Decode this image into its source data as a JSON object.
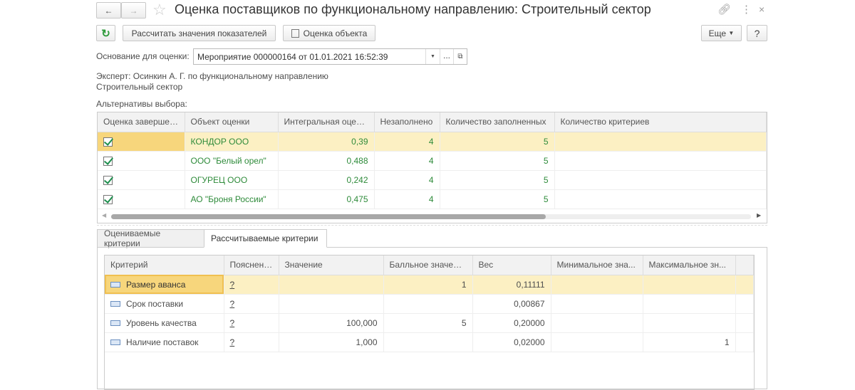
{
  "window": {
    "title": "Оценка поставщиков по функциональному направлению: Строительный сектор"
  },
  "toolbar": {
    "calculate_label": "Рассчитать значения показателей",
    "evaluate_label": "Оценка объекта",
    "more_label": "Еще",
    "help_label": "?"
  },
  "basis": {
    "label": "Основание для оценки:",
    "value": "Мероприятие 000000164 от 01.01.2021 16:52:39"
  },
  "expert": {
    "line1": "Эксперт: Осинкин А. Г. по функциональному направлению",
    "line2": "Строительный сектор"
  },
  "alternatives": {
    "label": "Альтернативы выбора:",
    "columns": [
      "Оценка завершена",
      "Объект оценки",
      "Интегральная оценка",
      "Незаполнено",
      "Количество заполненных",
      "Количество критериев"
    ],
    "rows": [
      {
        "done": true,
        "object": "КОНДОР ООО",
        "score": "0,39",
        "empty": "4",
        "filled": "5",
        "criteria": ""
      },
      {
        "done": true,
        "object": "ООО \"Белый орел\"",
        "score": "0,488",
        "empty": "4",
        "filled": "5",
        "criteria": ""
      },
      {
        "done": true,
        "object": "ОГУРЕЦ ООО",
        "score": "0,242",
        "empty": "4",
        "filled": "5",
        "criteria": ""
      },
      {
        "done": true,
        "object": "АО \"Броня России\"",
        "score": "0,475",
        "empty": "4",
        "filled": "5",
        "criteria": ""
      }
    ]
  },
  "tabs": [
    {
      "label": "Оцениваемые критерии",
      "active": false
    },
    {
      "label": "Рассчитываемые критерии",
      "active": true
    }
  ],
  "criteria": {
    "columns": [
      "Критерий",
      "Пояснение",
      "Значение",
      "Балльное значение",
      "Вес",
      "Минимальное зна...",
      "Максимальное зн..."
    ],
    "rows": [
      {
        "name": "Размер аванса",
        "note": "?",
        "value": "",
        "points": "1",
        "weight": "0,11111",
        "min": "",
        "max": ""
      },
      {
        "name": "Срок поставки",
        "note": "?",
        "value": "",
        "points": "",
        "weight": "0,00867",
        "min": "",
        "max": ""
      },
      {
        "name": "Уровень качества",
        "note": "?",
        "value": "100,000",
        "points": "5",
        "weight": "0,20000",
        "min": "",
        "max": ""
      },
      {
        "name": "Наличие поставок",
        "note": "?",
        "value": "1,000",
        "points": "",
        "weight": "0,02000",
        "min": "",
        "max": "1"
      }
    ]
  }
}
